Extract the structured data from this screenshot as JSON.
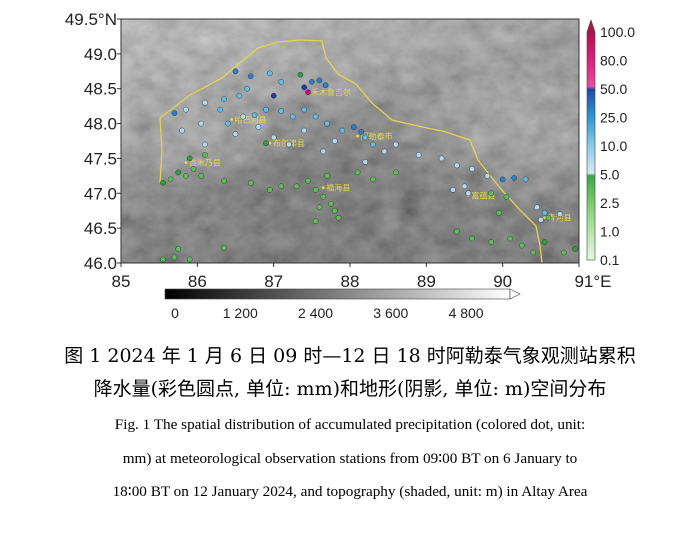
{
  "chart_data": {
    "type": "scatter",
    "description_keys": "precipitation stations over shaded topography",
    "x_ticks": [
      "85",
      "86",
      "87",
      "88",
      "89",
      "90",
      "91°E"
    ],
    "y_ticks": [
      "46.0",
      "46.5",
      "47.0",
      "47.5",
      "48.0",
      "48.5",
      "49.0",
      "49.5°N"
    ],
    "xlim": [
      85,
      91
    ],
    "ylim": [
      46,
      49.5
    ],
    "precip_colorbar": {
      "labels": [
        "0.1",
        "1.0",
        "2.5",
        "5.0",
        "10.0",
        "25.0",
        "50.0",
        "80.0",
        "100.0"
      ],
      "levels": [
        0.1,
        1,
        2.5,
        5,
        10,
        25,
        50,
        80,
        100
      ],
      "colors": [
        "#c9eec0",
        "#95d98a",
        "#5cbf55",
        "#2f9e3e",
        "#b4d6ee",
        "#63bde6",
        "#2a7fcf",
        "#1b3f9f",
        "#e2278f",
        "#c4155f"
      ]
    },
    "topo_colorbar": {
      "labels": [
        "0",
        "1 200",
        "2 400",
        "3 600",
        "4 800"
      ],
      "range": [
        0,
        5500
      ]
    },
    "cities": [
      {
        "name": "禾木鲁吉尔",
        "lon": 87.45,
        "lat": 48.45
      },
      {
        "name": "哈巴河县",
        "lon": 86.45,
        "lat": 48.06
      },
      {
        "name": "布尔津县",
        "lon": 86.95,
        "lat": 47.72
      },
      {
        "name": "阿勒泰市",
        "lon": 88.1,
        "lat": 47.82
      },
      {
        "name": "吉木乃县",
        "lon": 85.85,
        "lat": 47.44
      },
      {
        "name": "福海县",
        "lon": 87.65,
        "lat": 47.08
      },
      {
        "name": "富蕴县",
        "lon": 89.55,
        "lat": 46.97
      },
      {
        "name": "青河县",
        "lon": 90.55,
        "lat": 46.65
      }
    ],
    "stations": [
      {
        "lon": 86.5,
        "lat": 48.75,
        "v": 55
      },
      {
        "lon": 86.7,
        "lat": 48.68,
        "v": 60
      },
      {
        "lon": 86.95,
        "lat": 48.72,
        "v": 30
      },
      {
        "lon": 87.1,
        "lat": 48.6,
        "v": 35
      },
      {
        "lon": 87.35,
        "lat": 48.7,
        "v": 8
      },
      {
        "lon": 87.5,
        "lat": 48.6,
        "v": 60
      },
      {
        "lon": 87.6,
        "lat": 48.62,
        "v": 55
      },
      {
        "lon": 87.68,
        "lat": 48.55,
        "v": 60
      },
      {
        "lon": 87.4,
        "lat": 48.52,
        "v": 90
      },
      {
        "lon": 87.45,
        "lat": 48.45,
        "v": 100
      },
      {
        "lon": 87.0,
        "lat": 48.4,
        "v": 85
      },
      {
        "lon": 86.65,
        "lat": 48.5,
        "v": 40
      },
      {
        "lon": 86.55,
        "lat": 48.4,
        "v": 40
      },
      {
        "lon": 86.35,
        "lat": 48.35,
        "v": 30
      },
      {
        "lon": 86.1,
        "lat": 48.3,
        "v": 20
      },
      {
        "lon": 85.85,
        "lat": 48.2,
        "v": 12
      },
      {
        "lon": 85.7,
        "lat": 48.15,
        "v": 60
      },
      {
        "lon": 86.3,
        "lat": 48.2,
        "v": 35
      },
      {
        "lon": 86.4,
        "lat": 48.0,
        "v": 45
      },
      {
        "lon": 86.6,
        "lat": 48.1,
        "v": 20
      },
      {
        "lon": 86.75,
        "lat": 48.12,
        "v": 35
      },
      {
        "lon": 86.9,
        "lat": 48.2,
        "v": 35
      },
      {
        "lon": 87.1,
        "lat": 48.18,
        "v": 30
      },
      {
        "lon": 87.25,
        "lat": 48.1,
        "v": 40
      },
      {
        "lon": 87.4,
        "lat": 48.2,
        "v": 35
      },
      {
        "lon": 87.55,
        "lat": 48.1,
        "v": 30
      },
      {
        "lon": 87.7,
        "lat": 48.0,
        "v": 25
      },
      {
        "lon": 87.4,
        "lat": 47.9,
        "v": 20
      },
      {
        "lon": 86.8,
        "lat": 47.95,
        "v": 20
      },
      {
        "lon": 86.05,
        "lat": 48.0,
        "v": 15
      },
      {
        "lon": 85.8,
        "lat": 47.9,
        "v": 20
      },
      {
        "lon": 86.1,
        "lat": 47.7,
        "v": 12
      },
      {
        "lon": 86.5,
        "lat": 47.85,
        "v": 15
      },
      {
        "lon": 87.0,
        "lat": 47.8,
        "v": 15
      },
      {
        "lon": 87.2,
        "lat": 47.7,
        "v": 12
      },
      {
        "lon": 86.9,
        "lat": 47.72,
        "v": 8
      },
      {
        "lon": 87.9,
        "lat": 47.9,
        "v": 45
      },
      {
        "lon": 88.05,
        "lat": 47.95,
        "v": 60
      },
      {
        "lon": 88.15,
        "lat": 47.88,
        "v": 55
      },
      {
        "lon": 88.2,
        "lat": 47.8,
        "v": 45
      },
      {
        "lon": 88.3,
        "lat": 47.7,
        "v": 30
      },
      {
        "lon": 88.45,
        "lat": 47.6,
        "v": 20
      },
      {
        "lon": 87.8,
        "lat": 47.75,
        "v": 15
      },
      {
        "lon": 87.65,
        "lat": 47.6,
        "v": 12
      },
      {
        "lon": 88.2,
        "lat": 47.45,
        "v": 15
      },
      {
        "lon": 88.6,
        "lat": 47.7,
        "v": 20
      },
      {
        "lon": 88.9,
        "lat": 47.55,
        "v": 15
      },
      {
        "lon": 89.2,
        "lat": 47.5,
        "v": 15
      },
      {
        "lon": 89.4,
        "lat": 47.4,
        "v": 15
      },
      {
        "lon": 89.6,
        "lat": 47.35,
        "v": 15
      },
      {
        "lon": 89.8,
        "lat": 47.25,
        "v": 12
      },
      {
        "lon": 90.0,
        "lat": 47.2,
        "v": 60
      },
      {
        "lon": 90.15,
        "lat": 47.22,
        "v": 55
      },
      {
        "lon": 90.3,
        "lat": 47.2,
        "v": 30
      },
      {
        "lon": 89.5,
        "lat": 47.1,
        "v": 15
      },
      {
        "lon": 89.55,
        "lat": 47.0,
        "v": 15
      },
      {
        "lon": 89.35,
        "lat": 47.05,
        "v": 12
      },
      {
        "lon": 89.85,
        "lat": 47.0,
        "v": 3
      },
      {
        "lon": 90.05,
        "lat": 46.95,
        "v": 3
      },
      {
        "lon": 90.45,
        "lat": 46.8,
        "v": 15
      },
      {
        "lon": 90.55,
        "lat": 46.72,
        "v": 25
      },
      {
        "lon": 90.6,
        "lat": 46.65,
        "v": 3
      },
      {
        "lon": 90.75,
        "lat": 46.7,
        "v": 15
      },
      {
        "lon": 90.5,
        "lat": 46.62,
        "v": 12
      },
      {
        "lon": 89.95,
        "lat": 46.72,
        "v": 3
      },
      {
        "lon": 89.4,
        "lat": 46.45,
        "v": 3
      },
      {
        "lon": 89.6,
        "lat": 46.35,
        "v": 3
      },
      {
        "lon": 89.85,
        "lat": 46.3,
        "v": 3
      },
      {
        "lon": 90.1,
        "lat": 46.35,
        "v": 3
      },
      {
        "lon": 90.25,
        "lat": 46.25,
        "v": 3
      },
      {
        "lon": 90.4,
        "lat": 46.15,
        "v": 3
      },
      {
        "lon": 90.55,
        "lat": 46.3,
        "v": 5
      },
      {
        "lon": 90.8,
        "lat": 46.15,
        "v": 3
      },
      {
        "lon": 90.95,
        "lat": 46.2,
        "v": 5
      },
      {
        "lon": 85.55,
        "lat": 47.15,
        "v": 5
      },
      {
        "lon": 85.65,
        "lat": 47.2,
        "v": 3
      },
      {
        "lon": 85.75,
        "lat": 47.3,
        "v": 5
      },
      {
        "lon": 85.85,
        "lat": 47.25,
        "v": 3
      },
      {
        "lon": 85.95,
        "lat": 47.35,
        "v": 3
      },
      {
        "lon": 85.9,
        "lat": 47.5,
        "v": 8
      },
      {
        "lon": 86.1,
        "lat": 47.55,
        "v": 3
      },
      {
        "lon": 86.05,
        "lat": 47.25,
        "v": 3
      },
      {
        "lon": 86.35,
        "lat": 47.18,
        "v": 3
      },
      {
        "lon": 86.7,
        "lat": 47.15,
        "v": 3
      },
      {
        "lon": 86.95,
        "lat": 47.05,
        "v": 3
      },
      {
        "lon": 87.1,
        "lat": 47.1,
        "v": 3
      },
      {
        "lon": 87.3,
        "lat": 47.1,
        "v": 3
      },
      {
        "lon": 87.45,
        "lat": 47.18,
        "v": 3
      },
      {
        "lon": 87.55,
        "lat": 47.05,
        "v": 3
      },
      {
        "lon": 87.65,
        "lat": 46.95,
        "v": 3
      },
      {
        "lon": 87.75,
        "lat": 46.85,
        "v": 3
      },
      {
        "lon": 87.8,
        "lat": 46.75,
        "v": 3
      },
      {
        "lon": 87.6,
        "lat": 46.8,
        "v": 3
      },
      {
        "lon": 87.7,
        "lat": 47.25,
        "v": 3
      },
      {
        "lon": 87.55,
        "lat": 46.6,
        "v": 3
      },
      {
        "lon": 87.85,
        "lat": 46.65,
        "v": 3
      },
      {
        "lon": 85.55,
        "lat": 46.05,
        "v": 3
      },
      {
        "lon": 85.7,
        "lat": 46.08,
        "v": 3
      },
      {
        "lon": 85.75,
        "lat": 46.2,
        "v": 3
      },
      {
        "lon": 85.9,
        "lat": 46.05,
        "v": 3
      },
      {
        "lon": 86.35,
        "lat": 46.22,
        "v": 3
      },
      {
        "lon": 88.1,
        "lat": 47.3,
        "v": 3
      },
      {
        "lon": 88.3,
        "lat": 47.2,
        "v": 3
      },
      {
        "lon": 88.6,
        "lat": 47.3,
        "v": 3
      }
    ]
  },
  "caption": {
    "cn_line1": "图 1 2024 年 1 月 6 日 09 时—12 日 18 时阿勒泰气象观测站累积",
    "cn_line2": "降水量(彩色圆点, 单位: mm)和地形(阴影, 单位: m)空间分布",
    "en_line1": "Fig. 1 The spatial distribution of accumulated precipitation (colored dot, unit:",
    "en_line2": "mm) at meteorological observation stations from 09∶00 BT on 6 January to",
    "en_line3": "18∶00 BT on 12 January 2024, and topography (shaded, unit: m) in Altay Area"
  }
}
